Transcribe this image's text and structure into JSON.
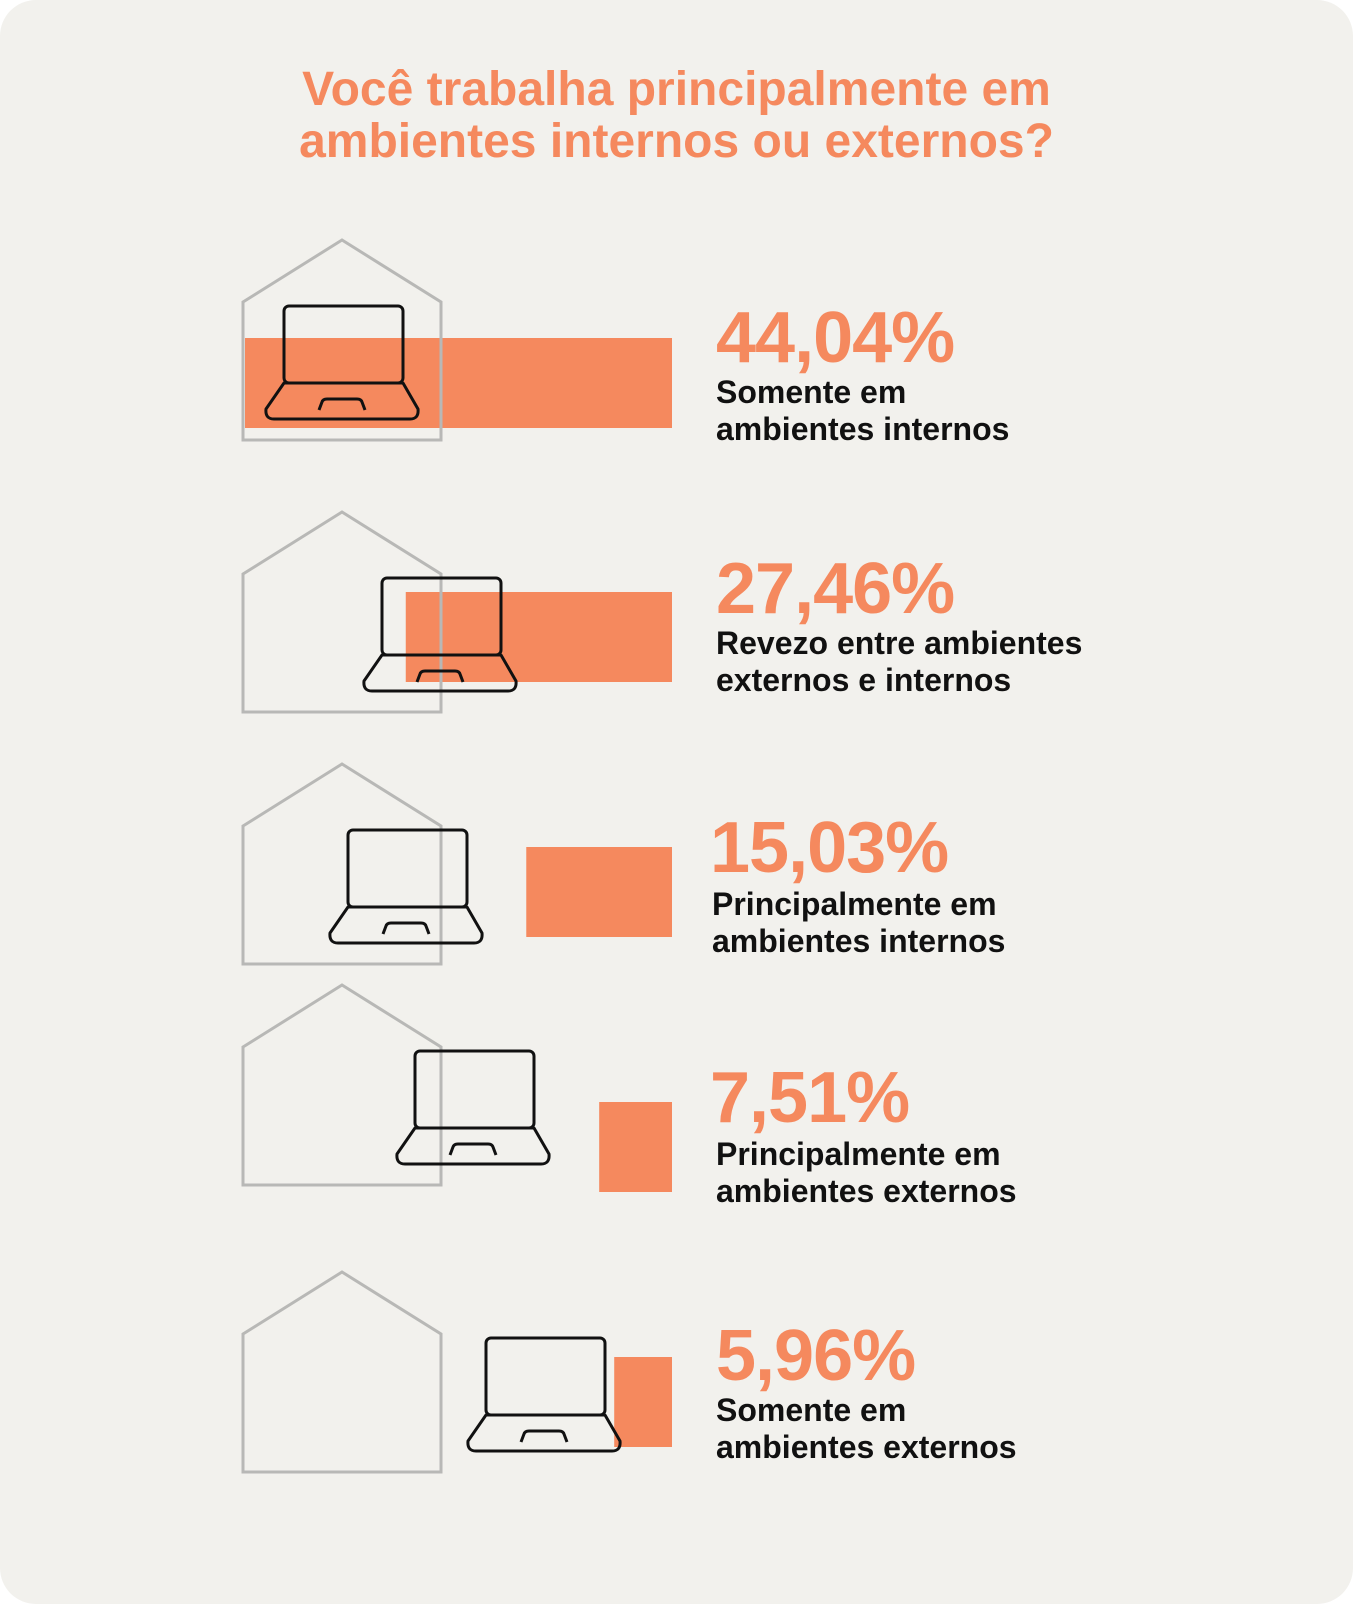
{
  "colors": {
    "background": "#f2f1ed",
    "accent": "#f5895e",
    "house_stroke": "#b8b8b6",
    "laptop_stroke": "#111111",
    "text": "#111111"
  },
  "icons": {
    "house": "house-outline-icon",
    "laptop": "laptop-icon"
  },
  "chart_data": {
    "type": "bar",
    "title": "Você trabalha principalmente em ambientes internos ou externos?",
    "title_lines": [
      "Você trabalha principalmente em",
      "ambientes internos ou externos?"
    ],
    "unit": "%",
    "categories": [
      "Somente em ambientes internos",
      "Revezo entre ambientes externos e internos",
      "Principalmente em ambientes internos",
      "Principalmente em ambientes externos",
      "Somente em ambientes externos"
    ],
    "values": [
      44.04,
      27.46,
      15.03,
      7.51,
      5.96
    ],
    "value_labels": [
      "44,04%",
      "27,46%",
      "15,03%",
      "7,51%",
      "5,96%"
    ],
    "label_lines": [
      [
        "Somente em",
        "ambientes internos"
      ],
      [
        "Revezo entre ambientes",
        "externos e internos"
      ],
      [
        "Principalmente em",
        "ambientes internos"
      ],
      [
        "Principalmente em",
        "ambientes externos"
      ],
      [
        "Somente em",
        "ambientes externos"
      ]
    ],
    "legend": "none",
    "grid": false
  }
}
